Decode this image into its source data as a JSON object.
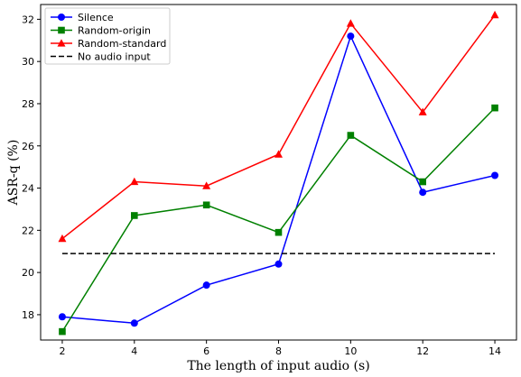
{
  "chart_data": {
    "type": "line",
    "xlabel": "The length of input audio (s)",
    "ylabel": "ASR-q (%)",
    "x": [
      2,
      4,
      6,
      8,
      10,
      12,
      14
    ],
    "xticks": [
      "2",
      "4",
      "6",
      "8",
      "10",
      "12",
      "14"
    ],
    "yticks": [
      "18",
      "20",
      "22",
      "24",
      "26",
      "28",
      "30",
      "32"
    ],
    "xlim": [
      1.4,
      14.6
    ],
    "ylim": [
      16.8,
      32.7
    ],
    "grid": false,
    "legend_position": "top-left",
    "series": [
      {
        "name": "Silence",
        "color": "#0000ff",
        "marker": "circle",
        "dash": "solid",
        "values": [
          17.9,
          17.6,
          19.4,
          20.4,
          31.2,
          23.8,
          24.6
        ]
      },
      {
        "name": "Random-origin",
        "color": "#008000",
        "marker": "square",
        "dash": "solid",
        "values": [
          17.2,
          22.7,
          23.2,
          21.9,
          26.5,
          24.3,
          27.8
        ]
      },
      {
        "name": "Random-standard",
        "color": "#ff0000",
        "marker": "triangle",
        "dash": "solid",
        "values": [
          21.6,
          24.3,
          24.1,
          25.6,
          31.8,
          27.6,
          32.2
        ]
      },
      {
        "name": "No audio input",
        "color": "#000000",
        "marker": "none",
        "dash": "dashed",
        "values": [
          20.9,
          20.9,
          20.9,
          20.9,
          20.9,
          20.9,
          20.9
        ]
      }
    ]
  }
}
